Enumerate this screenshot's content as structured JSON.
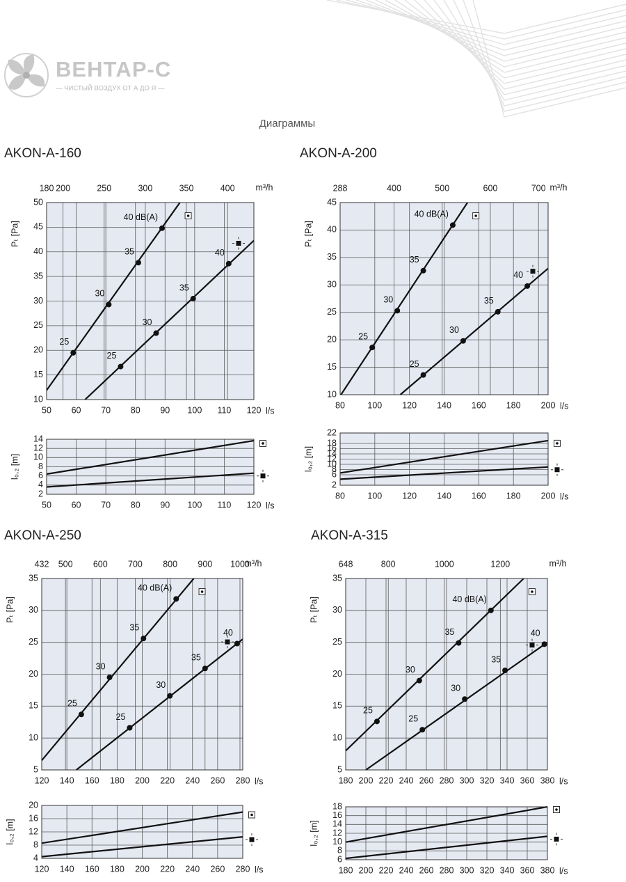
{
  "header": {
    "brand": "ВЕНТАР-С",
    "tagline": "— ЧИСТЫЙ ВОЗДУХ ОТ А ДО Я —",
    "section": "Диаграммы"
  },
  "chart_data": [
    {
      "type": "line",
      "title": "AKON-A-160",
      "x_label": "l/s",
      "x2_label": "m³/h",
      "y_label": "Pₜ [Pa]",
      "xlim": [
        50,
        120
      ],
      "xticks": [
        50,
        60,
        70,
        80,
        90,
        100,
        110,
        120
      ],
      "x2lim": [
        180,
        432
      ],
      "x2ticks": [
        180,
        200,
        250,
        300,
        350,
        400
      ],
      "ylim": [
        10,
        50
      ],
      "yticks": [
        10,
        15,
        20,
        25,
        30,
        35,
        40,
        45,
        50
      ],
      "grid": true,
      "series": [
        {
          "color": "#111111",
          "x": [
            50,
            95
          ],
          "values": [
            11.9,
            50
          ],
          "markers": {
            "x": [
              59,
              71,
              81,
              89
            ],
            "values": [
              19.5,
              29.3,
              37.8,
              44.8
            ],
            "labels": [
              25,
              30,
              35,
              "40 dB(A)"
            ]
          }
        },
        {
          "color": "#111111",
          "x": [
            63,
            120
          ],
          "values": [
            10,
            42.3
          ],
          "markers": {
            "x": [
              75,
              87,
              99.5,
              111.5
            ],
            "values": [
              16.7,
              23.5,
              30.5,
              37.6
            ],
            "labels": [
              25,
              30,
              35,
              40
            ]
          }
        }
      ]
    },
    {
      "type": "line",
      "x_label": "l/s",
      "y_label": "l₀,₂ [m]",
      "xlim": [
        50,
        120
      ],
      "xticks": [
        50,
        60,
        70,
        80,
        90,
        100,
        110,
        120
      ],
      "ylim": [
        2,
        14
      ],
      "yticks": [
        2,
        4,
        6,
        8,
        10,
        12,
        14
      ],
      "grid": true,
      "series": [
        {
          "color": "#111111",
          "x": [
            50,
            120
          ],
          "values": [
            6.4,
            13.7
          ]
        },
        {
          "color": "#111111",
          "x": [
            50,
            120
          ],
          "values": [
            3.6,
            6.6
          ]
        }
      ]
    },
    {
      "type": "line",
      "title": "AKON-A-200",
      "x_label": "l/s",
      "x2_label": "m³/h",
      "y_label": "Pₜ [Pa]",
      "xlim": [
        80,
        200
      ],
      "xticks": [
        80,
        100,
        120,
        140,
        160,
        180,
        200
      ],
      "x2lim": [
        288,
        720
      ],
      "x2ticks": [
        288,
        400,
        500,
        600,
        700
      ],
      "ylim": [
        10,
        45
      ],
      "yticks": [
        10,
        15,
        20,
        25,
        30,
        35,
        40,
        45
      ],
      "grid": true,
      "series": [
        {
          "color": "#111111",
          "x": [
            80.5,
            153.5
          ],
          "values": [
            10,
            45
          ],
          "markers": {
            "x": [
              98.5,
              113,
              128,
              145
            ],
            "values": [
              18.6,
              25.3,
              32.6,
              40.9
            ],
            "labels": [
              25,
              30,
              35,
              "40 dB(A)"
            ]
          }
        },
        {
          "color": "#111111",
          "x": [
            114.7,
            200
          ],
          "values": [
            10,
            33
          ],
          "markers": {
            "x": [
              128,
              151,
              171,
              188
            ],
            "values": [
              13.6,
              19.8,
              25.1,
              29.8
            ],
            "labels": [
              25,
              30,
              35,
              40
            ]
          }
        }
      ]
    },
    {
      "type": "line",
      "x_label": "l/s",
      "y_label": "l₀,₂ [m]",
      "xlim": [
        80,
        200
      ],
      "xticks": [
        80,
        100,
        120,
        140,
        160,
        180,
        200
      ],
      "ylim": [
        2,
        22
      ],
      "yticks": [
        2,
        6,
        8,
        10,
        12,
        14,
        16,
        18,
        22
      ],
      "grid": true,
      "series": [
        {
          "color": "#111111",
          "x": [
            80,
            200
          ],
          "values": [
            6.7,
            19.1
          ]
        },
        {
          "color": "#111111",
          "x": [
            80,
            200
          ],
          "values": [
            4.3,
            9.0
          ]
        }
      ]
    },
    {
      "type": "line",
      "title": "AKON-A-250",
      "x_label": "l/s",
      "x2_label": "m³/h",
      "y_label": "Pₜ [Pa]",
      "xlim": [
        120,
        280
      ],
      "xticks": [
        120,
        140,
        160,
        180,
        200,
        220,
        240,
        260,
        280
      ],
      "x2lim": [
        432,
        1008
      ],
      "x2ticks": [
        432,
        500,
        600,
        700,
        800,
        900,
        1000
      ],
      "ylim": [
        5,
        35
      ],
      "yticks": [
        5,
        10,
        15,
        20,
        25,
        30,
        35
      ],
      "grid": true,
      "series": [
        {
          "color": "#111111",
          "x": [
            120,
            241
          ],
          "values": [
            6.5,
            35
          ],
          "markers": {
            "x": [
              151.5,
              174,
              201,
              227
            ],
            "values": [
              13.7,
              19.5,
              25.6,
              31.8
            ],
            "labels": [
              25,
              30,
              35,
              "40 dB(A)"
            ]
          }
        },
        {
          "color": "#111111",
          "x": [
            147.5,
            280
          ],
          "values": [
            5,
            25.5
          ],
          "markers": {
            "x": [
              190,
              222,
              250,
              275.5
            ],
            "values": [
              11.6,
              16.6,
              20.9,
              24.8
            ],
            "labels": [
              25,
              30,
              35,
              40
            ]
          }
        }
      ]
    },
    {
      "type": "line",
      "x_label": "l/s",
      "y_label": "l₀,₂ [m]",
      "xlim": [
        120,
        280
      ],
      "xticks": [
        120,
        140,
        160,
        180,
        200,
        220,
        240,
        260,
        280
      ],
      "ylim": [
        4,
        20
      ],
      "yticks": [
        4,
        8,
        12,
        16,
        20
      ],
      "grid": true,
      "series": [
        {
          "color": "#111111",
          "x": [
            120,
            280
          ],
          "values": [
            8.6,
            18.0
          ]
        },
        {
          "color": "#111111",
          "x": [
            120,
            280
          ],
          "values": [
            4.5,
            10.5
          ]
        }
      ]
    },
    {
      "type": "line",
      "title": "AKON-A-315",
      "x_label": "l/s",
      "x2_label": "m³/h",
      "y_label": "Pₜ [Pa]",
      "xlim": [
        180,
        380
      ],
      "xticks": [
        180,
        200,
        220,
        240,
        260,
        280,
        300,
        320,
        340,
        360,
        380
      ],
      "x2lim": [
        648,
        1368
      ],
      "x2ticks": [
        648,
        800,
        1000,
        1200
      ],
      "ylim": [
        5,
        35
      ],
      "yticks": [
        5,
        10,
        15,
        20,
        25,
        30,
        35
      ],
      "grid": true,
      "series": [
        {
          "color": "#111111",
          "x": [
            180,
            356.5
          ],
          "values": [
            8,
            35
          ],
          "markers": {
            "x": [
              211,
              253,
              292,
              324
            ],
            "values": [
              12.6,
              19.0,
              24.9,
              30.0
            ],
            "labels": [
              25,
              30,
              35,
              "40 dB(A)"
            ]
          }
        },
        {
          "color": "#111111",
          "x": [
            200,
            380
          ],
          "values": [
            5,
            25
          ],
          "markers": {
            "x": [
              256,
              298,
              338,
              377
            ],
            "values": [
              11.3,
              16.1,
              20.6,
              24.7
            ],
            "labels": [
              25,
              30,
              35,
              40
            ]
          }
        }
      ]
    },
    {
      "type": "line",
      "x_label": "l/s",
      "y_label": "l₀,₂ [m]",
      "xlim": [
        180,
        380
      ],
      "xticks": [
        180,
        200,
        220,
        240,
        260,
        280,
        300,
        320,
        340,
        360,
        380
      ],
      "ylim": [
        6,
        18
      ],
      "yticks": [
        6,
        8,
        10,
        12,
        14,
        16,
        18
      ],
      "grid": true,
      "series": [
        {
          "color": "#111111",
          "x": [
            180,
            380
          ],
          "values": [
            10.0,
            18.0
          ]
        },
        {
          "color": "#111111",
          "x": [
            180,
            380
          ],
          "values": [
            6.3,
            11.3
          ]
        }
      ]
    }
  ]
}
